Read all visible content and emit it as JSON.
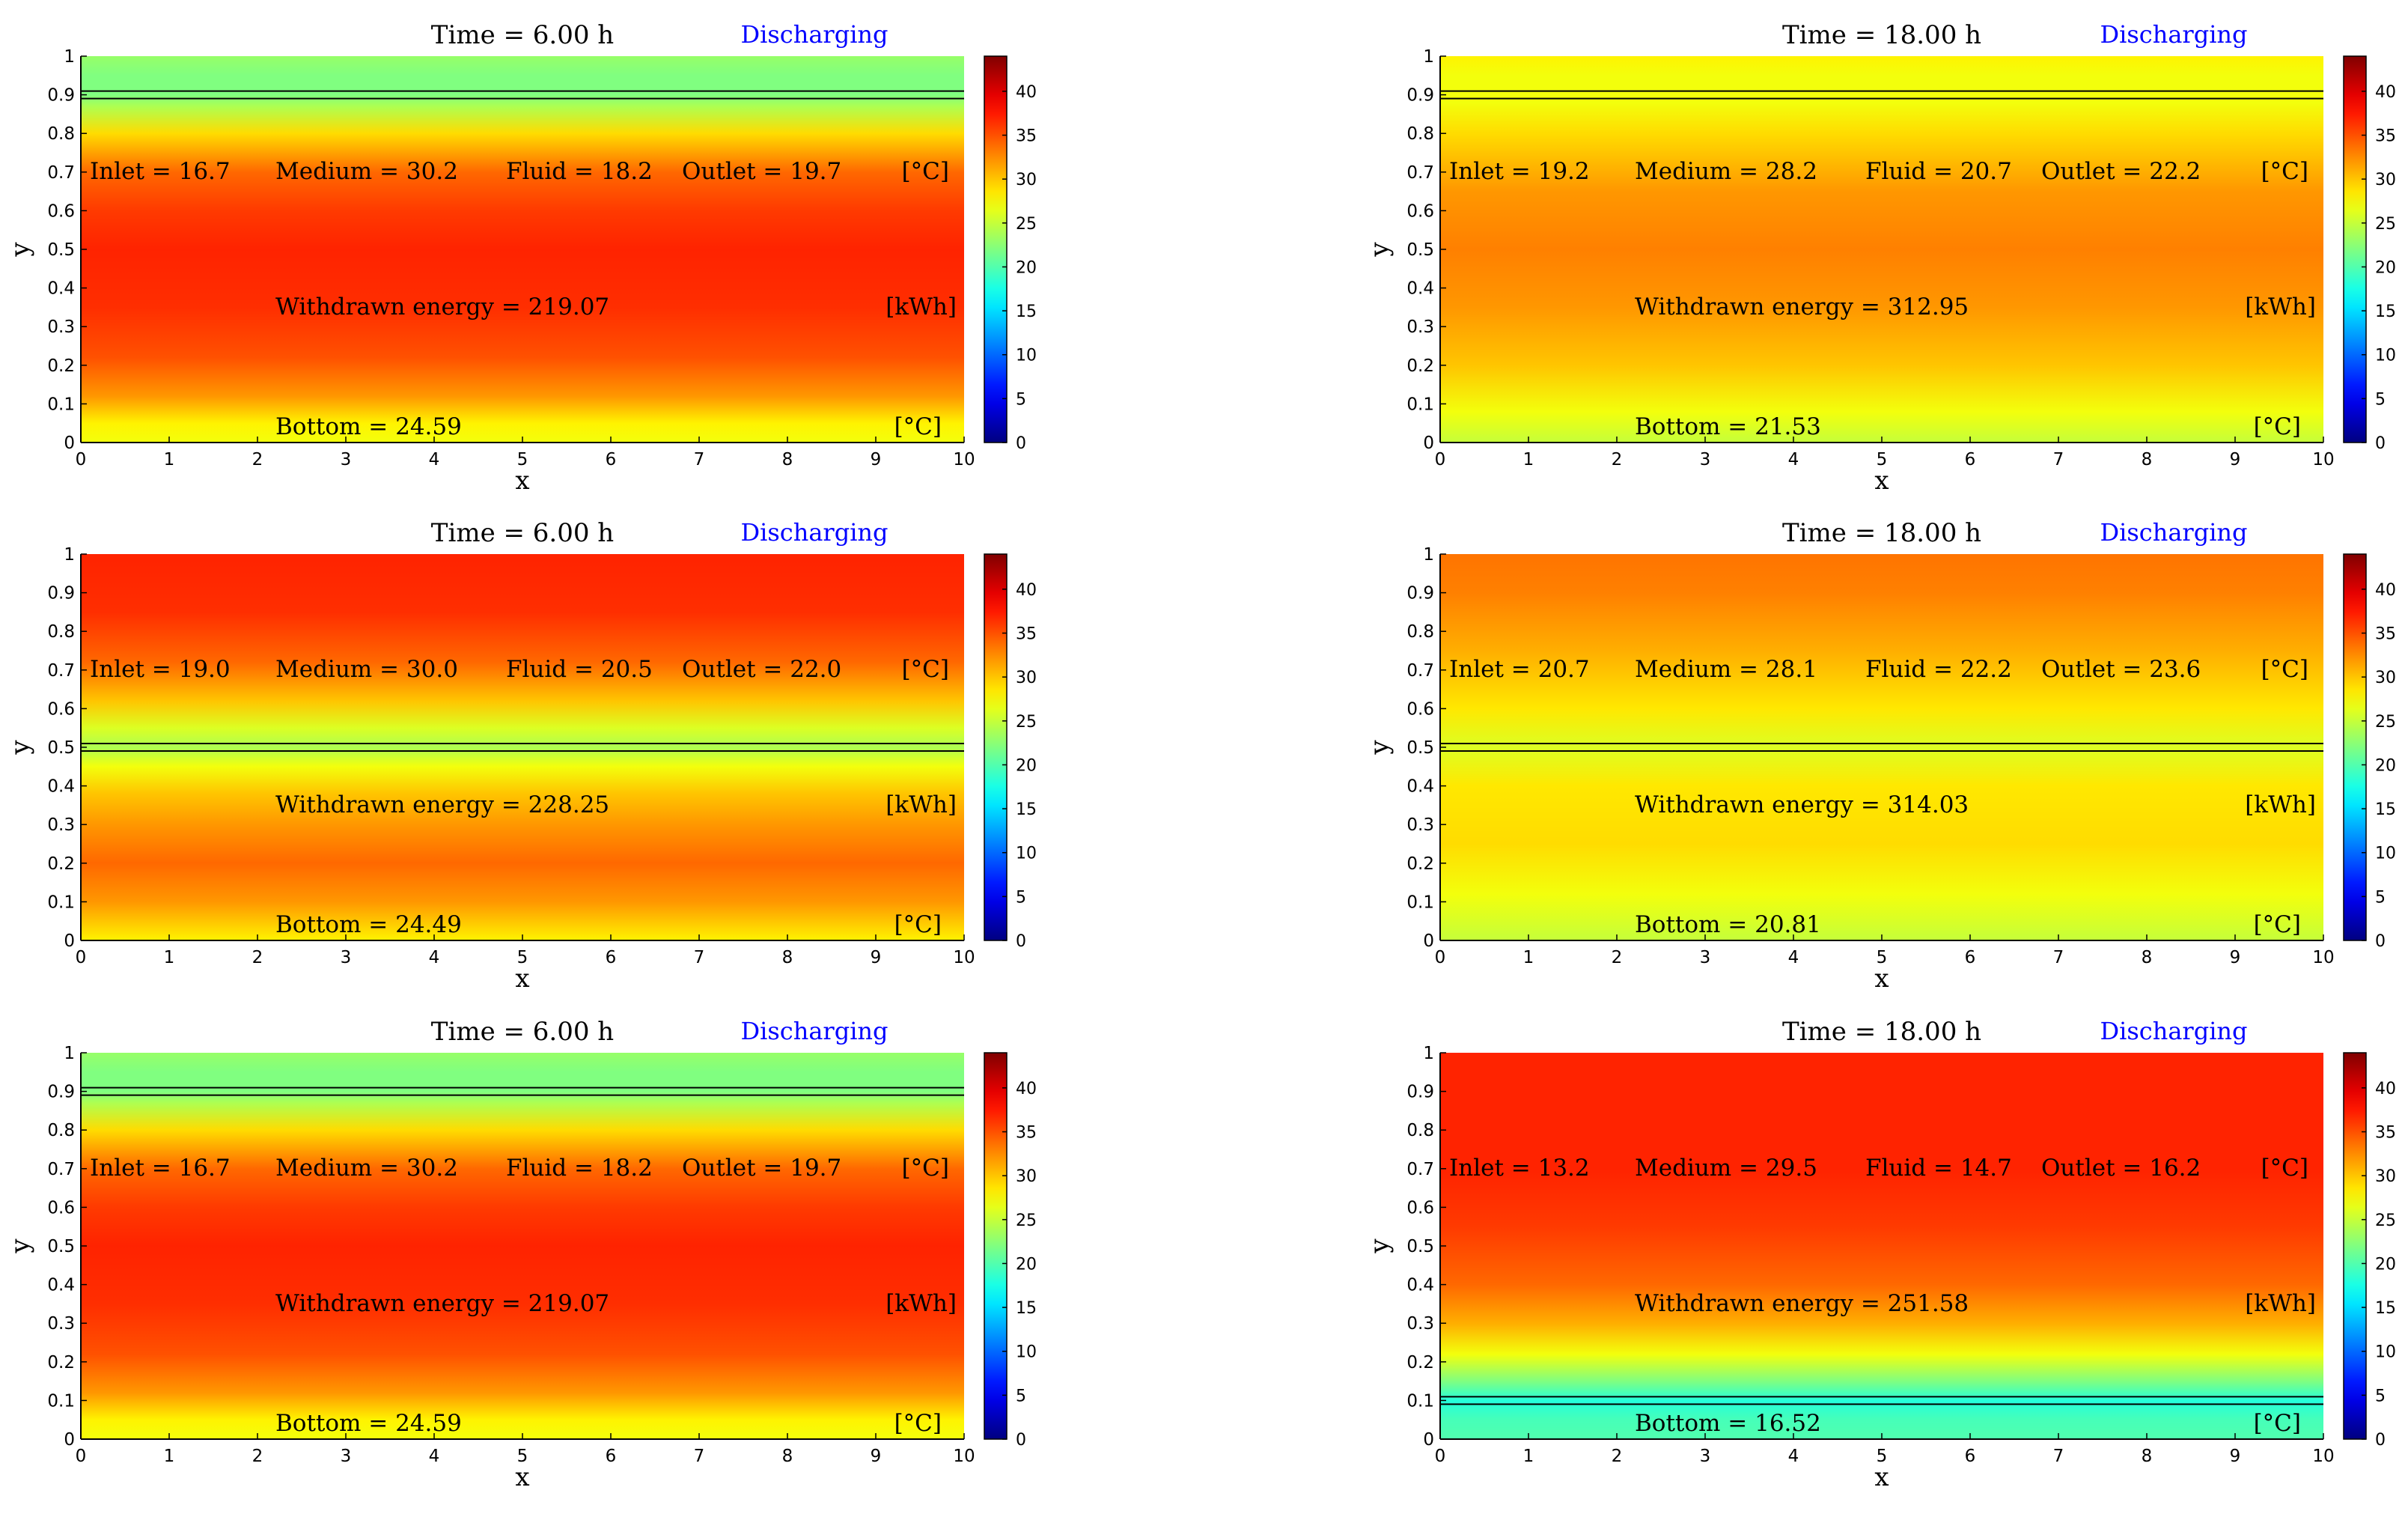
{
  "chart_data": [
    {
      "type": "heatmap",
      "title": "Time = 6.00 h",
      "mode": "Discharging",
      "xlabel": "x",
      "ylabel": "y",
      "xlim": [
        0,
        10
      ],
      "ylim": [
        0,
        1
      ],
      "xticks": [
        "0",
        "1",
        "2",
        "3",
        "4",
        "5",
        "6",
        "7",
        "8",
        "9",
        "10"
      ],
      "yticks": [
        "0",
        "0.1",
        "0.2",
        "0.3",
        "0.4",
        "0.5",
        "0.6",
        "0.7",
        "0.8",
        "0.9",
        "1"
      ],
      "colorbar": {
        "range": [
          0,
          44
        ],
        "ticks": [
          "0",
          "5",
          "10",
          "15",
          "20",
          "25",
          "30",
          "35",
          "40"
        ]
      },
      "pipe_y": 0.9,
      "profile": [
        {
          "y": 0,
          "t": 27
        },
        {
          "y": 0.05,
          "t": 28
        },
        {
          "y": 0.12,
          "t": 32
        },
        {
          "y": 0.22,
          "t": 35
        },
        {
          "y": 0.35,
          "t": 36.5
        },
        {
          "y": 0.5,
          "t": 37
        },
        {
          "y": 0.6,
          "t": 36
        },
        {
          "y": 0.7,
          "t": 34
        },
        {
          "y": 0.8,
          "t": 29
        },
        {
          "y": 0.87,
          "t": 24
        },
        {
          "y": 0.9,
          "t": 22
        },
        {
          "y": 0.95,
          "t": 22
        },
        {
          "y": 1,
          "t": 23
        }
      ],
      "labels": {
        "inlet": "Inlet = 16.7",
        "medium": "Medium = 30.2",
        "fluid": "Fluid = 18.2",
        "outlet": "Outlet = 19.7",
        "temp_unit": "[°C]",
        "energy": "Withdrawn energy = 219.07",
        "energy_unit": "[kWh]",
        "bottom": "Bottom = 24.59",
        "bottom_unit": "[°C]"
      }
    },
    {
      "type": "heatmap",
      "title": "Time = 18.00 h",
      "mode": "Discharging",
      "xlabel": "x",
      "ylabel": "y",
      "xlim": [
        0,
        10
      ],
      "ylim": [
        0,
        1
      ],
      "xticks": [
        "0",
        "1",
        "2",
        "3",
        "4",
        "5",
        "6",
        "7",
        "8",
        "9",
        "10"
      ],
      "yticks": [
        "0",
        "0.1",
        "0.2",
        "0.3",
        "0.4",
        "0.5",
        "0.6",
        "0.7",
        "0.8",
        "0.9",
        "1"
      ],
      "colorbar": {
        "range": [
          0,
          44
        ],
        "ticks": [
          "0",
          "5",
          "10",
          "15",
          "20",
          "25",
          "30",
          "35",
          "40"
        ]
      },
      "pipe_y": 0.9,
      "profile": [
        {
          "y": 0,
          "t": 25
        },
        {
          "y": 0.08,
          "t": 27
        },
        {
          "y": 0.2,
          "t": 30
        },
        {
          "y": 0.35,
          "t": 32
        },
        {
          "y": 0.5,
          "t": 33
        },
        {
          "y": 0.65,
          "t": 32
        },
        {
          "y": 0.8,
          "t": 29
        },
        {
          "y": 0.88,
          "t": 27
        },
        {
          "y": 0.95,
          "t": 27
        },
        {
          "y": 1,
          "t": 28
        }
      ],
      "labels": {
        "inlet": "Inlet = 19.2",
        "medium": "Medium = 28.2",
        "fluid": "Fluid = 20.7",
        "outlet": "Outlet = 22.2",
        "temp_unit": "[°C]",
        "energy": "Withdrawn energy = 312.95",
        "energy_unit": "[kWh]",
        "bottom": "Bottom = 21.53",
        "bottom_unit": "[°C]"
      }
    },
    {
      "type": "heatmap",
      "title": "Time = 6.00 h",
      "mode": "Discharging",
      "xlabel": "x",
      "ylabel": "y",
      "xlim": [
        0,
        10
      ],
      "ylim": [
        0,
        1
      ],
      "xticks": [
        "0",
        "1",
        "2",
        "3",
        "4",
        "5",
        "6",
        "7",
        "8",
        "9",
        "10"
      ],
      "yticks": [
        "0",
        "0.1",
        "0.2",
        "0.3",
        "0.4",
        "0.5",
        "0.6",
        "0.7",
        "0.8",
        "0.9",
        "1"
      ],
      "colorbar": {
        "range": [
          0,
          44
        ],
        "ticks": [
          "0",
          "5",
          "10",
          "15",
          "20",
          "25",
          "30",
          "35",
          "40"
        ]
      },
      "pipe_y": 0.5,
      "profile": [
        {
          "y": 0,
          "t": 28
        },
        {
          "y": 0.1,
          "t": 32
        },
        {
          "y": 0.2,
          "t": 34
        },
        {
          "y": 0.3,
          "t": 32
        },
        {
          "y": 0.38,
          "t": 30
        },
        {
          "y": 0.45,
          "t": 27
        },
        {
          "y": 0.5,
          "t": 24
        },
        {
          "y": 0.55,
          "t": 26
        },
        {
          "y": 0.62,
          "t": 30
        },
        {
          "y": 0.72,
          "t": 34
        },
        {
          "y": 0.85,
          "t": 36.5
        },
        {
          "y": 1,
          "t": 37
        }
      ],
      "labels": {
        "inlet": "Inlet = 19.0",
        "medium": "Medium = 30.0",
        "fluid": "Fluid = 20.5",
        "outlet": "Outlet = 22.0",
        "temp_unit": "[°C]",
        "energy": "Withdrawn energy = 228.25",
        "energy_unit": "[kWh]",
        "bottom": "Bottom = 24.49",
        "bottom_unit": "[°C]"
      }
    },
    {
      "type": "heatmap",
      "title": "Time = 18.00 h",
      "mode": "Discharging",
      "xlabel": "x",
      "ylabel": "y",
      "xlim": [
        0,
        10
      ],
      "ylim": [
        0,
        1
      ],
      "xticks": [
        "0",
        "1",
        "2",
        "3",
        "4",
        "5",
        "6",
        "7",
        "8",
        "9",
        "10"
      ],
      "yticks": [
        "0",
        "0.1",
        "0.2",
        "0.3",
        "0.4",
        "0.5",
        "0.6",
        "0.7",
        "0.8",
        "0.9",
        "1"
      ],
      "colorbar": {
        "range": [
          0,
          44
        ],
        "ticks": [
          "0",
          "5",
          "10",
          "15",
          "20",
          "25",
          "30",
          "35",
          "40"
        ]
      },
      "pipe_y": 0.5,
      "profile": [
        {
          "y": 0,
          "t": 25
        },
        {
          "y": 0.12,
          "t": 27
        },
        {
          "y": 0.25,
          "t": 29
        },
        {
          "y": 0.4,
          "t": 28.5
        },
        {
          "y": 0.5,
          "t": 26
        },
        {
          "y": 0.6,
          "t": 28.5
        },
        {
          "y": 0.75,
          "t": 31
        },
        {
          "y": 0.9,
          "t": 33
        },
        {
          "y": 1,
          "t": 33.5
        }
      ],
      "labels": {
        "inlet": "Inlet = 20.7",
        "medium": "Medium = 28.1",
        "fluid": "Fluid = 22.2",
        "outlet": "Outlet = 23.6",
        "temp_unit": "[°C]",
        "energy": "Withdrawn energy = 314.03",
        "energy_unit": "[kWh]",
        "bottom": "Bottom = 20.81",
        "bottom_unit": "[°C]"
      }
    },
    {
      "type": "heatmap",
      "title": "Time = 6.00 h",
      "mode": "Discharging",
      "xlabel": "x",
      "ylabel": "y",
      "xlim": [
        0,
        10
      ],
      "ylim": [
        0,
        1
      ],
      "xticks": [
        "0",
        "1",
        "2",
        "3",
        "4",
        "5",
        "6",
        "7",
        "8",
        "9",
        "10"
      ],
      "yticks": [
        "0",
        "0.1",
        "0.2",
        "0.3",
        "0.4",
        "0.5",
        "0.6",
        "0.7",
        "0.8",
        "0.9",
        "1"
      ],
      "colorbar": {
        "range": [
          0,
          44
        ],
        "ticks": [
          "0",
          "5",
          "10",
          "15",
          "20",
          "25",
          "30",
          "35",
          "40"
        ]
      },
      "pipe_y": 0.9,
      "profile": [
        {
          "y": 0,
          "t": 27
        },
        {
          "y": 0.05,
          "t": 28
        },
        {
          "y": 0.12,
          "t": 32
        },
        {
          "y": 0.22,
          "t": 35
        },
        {
          "y": 0.35,
          "t": 36.5
        },
        {
          "y": 0.5,
          "t": 37
        },
        {
          "y": 0.6,
          "t": 36
        },
        {
          "y": 0.7,
          "t": 34
        },
        {
          "y": 0.8,
          "t": 29
        },
        {
          "y": 0.87,
          "t": 24
        },
        {
          "y": 0.9,
          "t": 22
        },
        {
          "y": 0.95,
          "t": 22
        },
        {
          "y": 1,
          "t": 23
        }
      ],
      "labels": {
        "inlet": "Inlet = 16.7",
        "medium": "Medium = 30.2",
        "fluid": "Fluid = 18.2",
        "outlet": "Outlet = 19.7",
        "temp_unit": "[°C]",
        "energy": "Withdrawn energy = 219.07",
        "energy_unit": "[kWh]",
        "bottom": "Bottom = 24.59",
        "bottom_unit": "[°C]"
      }
    },
    {
      "type": "heatmap",
      "title": "Time = 18.00 h",
      "mode": "Discharging",
      "xlabel": "x",
      "ylabel": "y",
      "xlim": [
        0,
        10
      ],
      "ylim": [
        0,
        1
      ],
      "xticks": [
        "0",
        "1",
        "2",
        "3",
        "4",
        "5",
        "6",
        "7",
        "8",
        "9",
        "10"
      ],
      "yticks": [
        "0",
        "0.1",
        "0.2",
        "0.3",
        "0.4",
        "0.5",
        "0.6",
        "0.7",
        "0.8",
        "0.9",
        "1"
      ],
      "colorbar": {
        "range": [
          0,
          44
        ],
        "ticks": [
          "0",
          "5",
          "10",
          "15",
          "20",
          "25",
          "30",
          "35",
          "40"
        ]
      },
      "pipe_y": 0.1,
      "profile": [
        {
          "y": 0,
          "t": 20
        },
        {
          "y": 0.05,
          "t": 19.5
        },
        {
          "y": 0.1,
          "t": 18
        },
        {
          "y": 0.15,
          "t": 22
        },
        {
          "y": 0.22,
          "t": 27
        },
        {
          "y": 0.3,
          "t": 31
        },
        {
          "y": 0.4,
          "t": 34
        },
        {
          "y": 0.55,
          "t": 36
        },
        {
          "y": 0.7,
          "t": 37
        },
        {
          "y": 1,
          "t": 37
        }
      ],
      "labels": {
        "inlet": "Inlet = 13.2",
        "medium": "Medium = 29.5",
        "fluid": "Fluid = 14.7",
        "outlet": "Outlet = 16.2",
        "temp_unit": "[°C]",
        "energy": "Withdrawn energy = 251.58",
        "energy_unit": "[kWh]",
        "bottom": "Bottom = 16.52",
        "bottom_unit": "[°C]"
      }
    }
  ]
}
